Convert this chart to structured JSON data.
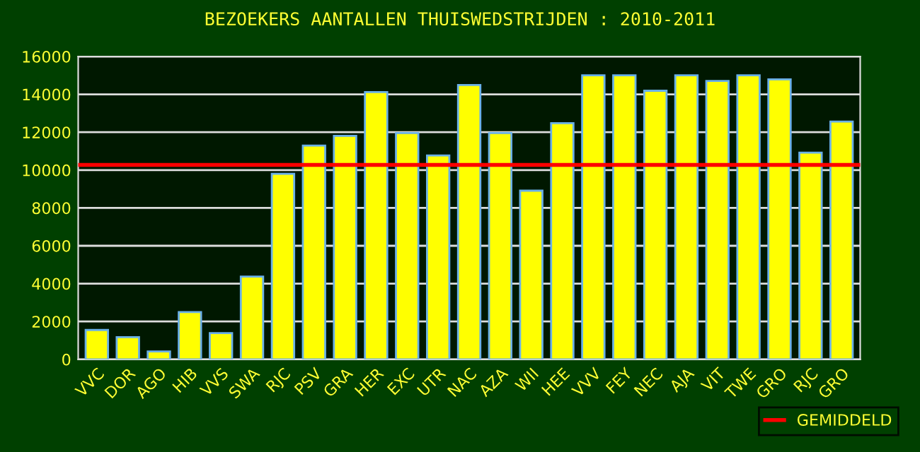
{
  "chart_data": {
    "type": "bar",
    "title": "BEZOEKERS AANTALLEN THUISWEDSTRIJDEN : 2010-2011",
    "categories": [
      "VVC",
      "DOR",
      "AGO",
      "HIB",
      "VVS",
      "SWA",
      "RJC",
      "PSV",
      "GRA",
      "HER",
      "EXC",
      "UTR",
      "NAC",
      "AZA",
      "WII",
      "HEE",
      "VVV",
      "FEY",
      "NEC",
      "AJA",
      "VIT",
      "TWE",
      "GRO",
      "RJC",
      "GRO"
    ],
    "values": [
      1550,
      1170,
      420,
      2500,
      1390,
      4370,
      9800,
      11290,
      11810,
      14120,
      11960,
      10770,
      14490,
      11960,
      8910,
      12480,
      15010,
      15010,
      14190,
      15010,
      14710,
      15010,
      14790,
      10920,
      12560
    ],
    "color": "#ffff00",
    "ylim": [
      0,
      16000
    ],
    "yticks": [
      0,
      2000,
      4000,
      6000,
      8000,
      10000,
      12000,
      14000,
      16000
    ],
    "grid": "y",
    "legend": "bottom right",
    "ref_lines": [
      {
        "axis": "y",
        "value": 10270,
        "label": "GEMIDDELD",
        "color": "#ff0000"
      }
    ]
  }
}
